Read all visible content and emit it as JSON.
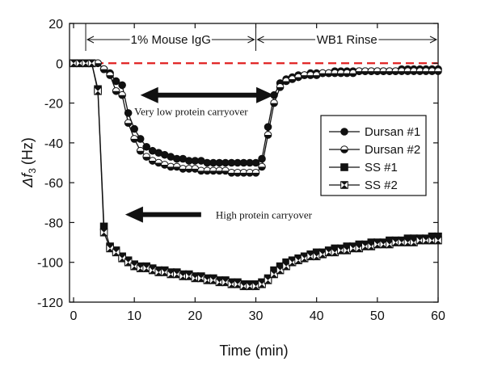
{
  "chart_data": {
    "type": "line",
    "xlabel": "Time (min)",
    "ylabel_main": "Δf",
    "ylabel_sub": "3",
    "ylabel_unit": "(Hz)",
    "xlim": [
      0,
      60
    ],
    "ylim": [
      -120,
      20
    ],
    "xticks": [
      "0",
      "10",
      "20",
      "30",
      "40",
      "50",
      "60"
    ],
    "yticks": [
      "20",
      "0",
      "-20",
      "-40",
      "-60",
      "-80",
      "-100",
      "-120"
    ],
    "x_tick_values": [
      0,
      10,
      20,
      30,
      40,
      50,
      60
    ],
    "y_tick_values": [
      20,
      0,
      -20,
      -40,
      -60,
      -80,
      -100,
      -120
    ],
    "baseline_y": 0,
    "baseline_color": "#e02020",
    "phases": [
      {
        "label": "1% Mouse IgG",
        "x_start": 2,
        "x_end": 30
      },
      {
        "label": "WB1 Rinse",
        "x_start": 30,
        "x_end": 60
      }
    ],
    "annotations": [
      {
        "text": "Very low protein carryover",
        "arrow": "double",
        "x_from": 11,
        "x_to": 33,
        "y": -16
      },
      {
        "text": "High protein carryover",
        "arrow": "left",
        "x_from": 8.5,
        "x_to": 21,
        "y": -76
      }
    ],
    "legend_position": "right",
    "series": [
      {
        "name": "Dursan #1",
        "marker": "filled-circle",
        "points": [
          [
            0,
            0
          ],
          [
            1,
            0
          ],
          [
            2,
            0
          ],
          [
            3,
            0
          ],
          [
            4,
            0
          ],
          [
            5,
            -3
          ],
          [
            6,
            -5
          ],
          [
            7,
            -9
          ],
          [
            8,
            -11
          ],
          [
            9,
            -25
          ],
          [
            10,
            -33
          ],
          [
            11,
            -38
          ],
          [
            12,
            -42
          ],
          [
            13,
            -44
          ],
          [
            14,
            -45
          ],
          [
            15,
            -46
          ],
          [
            16,
            -47
          ],
          [
            17,
            -48
          ],
          [
            18,
            -48
          ],
          [
            19,
            -49
          ],
          [
            20,
            -49
          ],
          [
            21,
            -49
          ],
          [
            22,
            -50
          ],
          [
            23,
            -50
          ],
          [
            24,
            -50
          ],
          [
            25,
            -50
          ],
          [
            26,
            -50
          ],
          [
            27,
            -50
          ],
          [
            28,
            -50
          ],
          [
            29,
            -50
          ],
          [
            30,
            -50
          ],
          [
            31,
            -48
          ],
          [
            32,
            -32
          ],
          [
            33,
            -16
          ],
          [
            34,
            -10
          ],
          [
            35,
            -8
          ],
          [
            36,
            -7
          ],
          [
            37,
            -6
          ],
          [
            38,
            -6
          ],
          [
            39,
            -5
          ],
          [
            40,
            -5
          ],
          [
            41,
            -5
          ],
          [
            42,
            -5
          ],
          [
            43,
            -4
          ],
          [
            44,
            -4
          ],
          [
            45,
            -4
          ],
          [
            46,
            -4
          ],
          [
            47,
            -4
          ],
          [
            48,
            -4
          ],
          [
            49,
            -4
          ],
          [
            50,
            -4
          ],
          [
            51,
            -4
          ],
          [
            52,
            -4
          ],
          [
            53,
            -4
          ],
          [
            54,
            -3
          ],
          [
            55,
            -3
          ],
          [
            56,
            -3
          ],
          [
            57,
            -3
          ],
          [
            58,
            -3
          ],
          [
            59,
            -3
          ],
          [
            60,
            -3
          ]
        ]
      },
      {
        "name": "Dursan #2",
        "marker": "half-circle",
        "points": [
          [
            0,
            0
          ],
          [
            1,
            0
          ],
          [
            2,
            0
          ],
          [
            3,
            0
          ],
          [
            4,
            0
          ],
          [
            5,
            -3
          ],
          [
            6,
            -6
          ],
          [
            7,
            -14
          ],
          [
            8,
            -16
          ],
          [
            9,
            -30
          ],
          [
            10,
            -38
          ],
          [
            11,
            -44
          ],
          [
            12,
            -47
          ],
          [
            13,
            -49
          ],
          [
            14,
            -50
          ],
          [
            15,
            -51
          ],
          [
            16,
            -52
          ],
          [
            17,
            -52
          ],
          [
            18,
            -53
          ],
          [
            19,
            -53
          ],
          [
            20,
            -53
          ],
          [
            21,
            -54
          ],
          [
            22,
            -54
          ],
          [
            23,
            -54
          ],
          [
            24,
            -54
          ],
          [
            25,
            -54
          ],
          [
            26,
            -55
          ],
          [
            27,
            -55
          ],
          [
            28,
            -55
          ],
          [
            29,
            -55
          ],
          [
            30,
            -55
          ],
          [
            31,
            -52
          ],
          [
            32,
            -36
          ],
          [
            33,
            -20
          ],
          [
            34,
            -12
          ],
          [
            35,
            -9
          ],
          [
            36,
            -8
          ],
          [
            37,
            -7
          ],
          [
            38,
            -6
          ],
          [
            39,
            -6
          ],
          [
            40,
            -6
          ],
          [
            41,
            -5
          ],
          [
            42,
            -5
          ],
          [
            43,
            -5
          ],
          [
            44,
            -5
          ],
          [
            45,
            -5
          ],
          [
            46,
            -5
          ],
          [
            47,
            -4
          ],
          [
            48,
            -4
          ],
          [
            49,
            -4
          ],
          [
            50,
            -4
          ],
          [
            51,
            -4
          ],
          [
            52,
            -4
          ],
          [
            53,
            -4
          ],
          [
            54,
            -4
          ],
          [
            55,
            -4
          ],
          [
            56,
            -4
          ],
          [
            57,
            -4
          ],
          [
            58,
            -4
          ],
          [
            59,
            -4
          ],
          [
            60,
            -4
          ]
        ]
      },
      {
        "name": "SS #1",
        "marker": "filled-square",
        "points": [
          [
            0,
            0
          ],
          [
            1,
            0
          ],
          [
            2,
            0
          ],
          [
            3,
            0
          ],
          [
            4,
            -13
          ],
          [
            5,
            -82
          ],
          [
            6,
            -92
          ],
          [
            7,
            -94
          ],
          [
            8,
            -97
          ],
          [
            9,
            -99
          ],
          [
            10,
            -101
          ],
          [
            11,
            -102
          ],
          [
            12,
            -102
          ],
          [
            13,
            -103
          ],
          [
            14,
            -104
          ],
          [
            15,
            -104
          ],
          [
            16,
            -105
          ],
          [
            17,
            -105
          ],
          [
            18,
            -106
          ],
          [
            19,
            -106
          ],
          [
            20,
            -107
          ],
          [
            21,
            -107
          ],
          [
            22,
            -108
          ],
          [
            23,
            -108
          ],
          [
            24,
            -109
          ],
          [
            25,
            -109
          ],
          [
            26,
            -110
          ],
          [
            27,
            -110
          ],
          [
            28,
            -111
          ],
          [
            29,
            -111
          ],
          [
            30,
            -111
          ],
          [
            31,
            -110
          ],
          [
            32,
            -108
          ],
          [
            33,
            -104
          ],
          [
            34,
            -102
          ],
          [
            35,
            -100
          ],
          [
            36,
            -99
          ],
          [
            37,
            -98
          ],
          [
            38,
            -97
          ],
          [
            39,
            -96
          ],
          [
            40,
            -95
          ],
          [
            41,
            -95
          ],
          [
            42,
            -94
          ],
          [
            43,
            -93
          ],
          [
            44,
            -93
          ],
          [
            45,
            -92
          ],
          [
            46,
            -92
          ],
          [
            47,
            -91
          ],
          [
            48,
            -91
          ],
          [
            49,
            -90
          ],
          [
            50,
            -90
          ],
          [
            51,
            -90
          ],
          [
            52,
            -89
          ],
          [
            53,
            -89
          ],
          [
            54,
            -89
          ],
          [
            55,
            -88
          ],
          [
            56,
            -88
          ],
          [
            57,
            -88
          ],
          [
            58,
            -88
          ],
          [
            59,
            -87
          ],
          [
            60,
            -87
          ]
        ]
      },
      {
        "name": "SS #2",
        "marker": "hourglass-square",
        "points": [
          [
            0,
            0
          ],
          [
            1,
            0
          ],
          [
            2,
            0
          ],
          [
            3,
            0
          ],
          [
            4,
            -14
          ],
          [
            5,
            -85
          ],
          [
            6,
            -93
          ],
          [
            7,
            -95
          ],
          [
            8,
            -98
          ],
          [
            9,
            -100
          ],
          [
            10,
            -102
          ],
          [
            11,
            -103
          ],
          [
            12,
            -103
          ],
          [
            13,
            -104
          ],
          [
            14,
            -105
          ],
          [
            15,
            -105
          ],
          [
            16,
            -106
          ],
          [
            17,
            -106
          ],
          [
            18,
            -107
          ],
          [
            19,
            -107
          ],
          [
            20,
            -108
          ],
          [
            21,
            -108
          ],
          [
            22,
            -109
          ],
          [
            23,
            -109
          ],
          [
            24,
            -110
          ],
          [
            25,
            -110
          ],
          [
            26,
            -111
          ],
          [
            27,
            -111
          ],
          [
            28,
            -112
          ],
          [
            29,
            -112
          ],
          [
            30,
            -112
          ],
          [
            31,
            -111
          ],
          [
            32,
            -109
          ],
          [
            33,
            -106
          ],
          [
            34,
            -104
          ],
          [
            35,
            -102
          ],
          [
            36,
            -100
          ],
          [
            37,
            -99
          ],
          [
            38,
            -98
          ],
          [
            39,
            -97
          ],
          [
            40,
            -97
          ],
          [
            41,
            -96
          ],
          [
            42,
            -95
          ],
          [
            43,
            -95
          ],
          [
            44,
            -94
          ],
          [
            45,
            -94
          ],
          [
            46,
            -93
          ],
          [
            47,
            -93
          ],
          [
            48,
            -92
          ],
          [
            49,
            -92
          ],
          [
            50,
            -91
          ],
          [
            51,
            -91
          ],
          [
            52,
            -91
          ],
          [
            53,
            -90
          ],
          [
            54,
            -90
          ],
          [
            55,
            -90
          ],
          [
            56,
            -90
          ],
          [
            57,
            -89
          ],
          [
            58,
            -89
          ],
          [
            59,
            -89
          ],
          [
            60,
            -89
          ]
        ]
      }
    ]
  }
}
